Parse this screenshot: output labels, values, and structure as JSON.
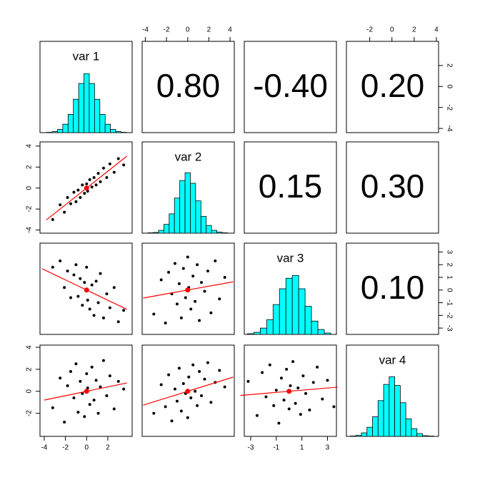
{
  "chart_data": {
    "type": "pairs",
    "variables": [
      {
        "label": "var 1",
        "lim": [
          -4.4,
          4.3
        ],
        "xticks": [
          -4,
          -2,
          0,
          2
        ],
        "yticks": [
          -4,
          -2,
          0,
          2
        ],
        "bins": [
          -3.75,
          -3.25,
          -2.75,
          -2.25,
          -1.75,
          -1.25,
          -0.75,
          -0.25,
          0.25,
          0.75,
          1.25,
          1.75,
          2.25,
          2.75,
          3.25,
          3.75
        ],
        "counts": [
          1,
          3,
          9,
          24,
          52,
          95,
          140,
          168,
          140,
          95,
          52,
          24,
          9,
          3,
          1
        ]
      },
      {
        "label": "var 2",
        "lim": [
          -4.3,
          4.4
        ],
        "xticks": [
          -4,
          -2,
          0,
          2,
          4
        ],
        "yticks": [
          -4,
          -2,
          0,
          2,
          4
        ],
        "bins": [
          -3.75,
          -3.25,
          -2.75,
          -2.25,
          -1.75,
          -1.25,
          -0.75,
          -0.25,
          0.25,
          0.75,
          1.25,
          1.75,
          2.25,
          2.75,
          3.25,
          3.75
        ],
        "counts": [
          1,
          2,
          8,
          25,
          55,
          100,
          150,
          172,
          142,
          92,
          48,
          22,
          8,
          3,
          1
        ]
      },
      {
        "label": "var 3",
        "lim": [
          -3.5,
          3.7
        ],
        "xticks": [
          -3,
          -1,
          1,
          3
        ],
        "yticks": [
          -3,
          -2,
          -1,
          0,
          1,
          2,
          3
        ],
        "bins": [
          -3.25,
          -2.75,
          -2.25,
          -1.75,
          -1.25,
          -0.75,
          -0.25,
          0.25,
          0.75,
          1.25,
          1.75,
          2.25,
          2.75,
          3.25
        ],
        "counts": [
          2,
          6,
          18,
          42,
          85,
          130,
          160,
          168,
          130,
          80,
          38,
          14,
          4
        ]
      },
      {
        "label": "var 4",
        "lim": [
          -4.1,
          4.2
        ],
        "xticks": [
          -2,
          0,
          2,
          4
        ],
        "yticks": [
          -2,
          0,
          2,
          4
        ],
        "bins": [
          -3.75,
          -3.25,
          -2.75,
          -2.25,
          -1.75,
          -1.25,
          -0.75,
          -0.25,
          0.25,
          0.75,
          1.25,
          1.75,
          2.25,
          2.75,
          3.25,
          3.75
        ],
        "counts": [
          1,
          3,
          10,
          26,
          56,
          102,
          148,
          170,
          145,
          96,
          50,
          22,
          8,
          2,
          1
        ]
      }
    ],
    "hist_ylim": [
      0,
      260
    ],
    "correlations": {
      "values": [
        0.8,
        -0.4,
        0.2,
        0.15,
        0.3,
        0.1
      ],
      "value_labels": [
        "0.80",
        "-0.40",
        "0.20",
        "0.15",
        "0.30",
        "0.10"
      ]
    },
    "scatter": [
      {
        "x": [
          -3.2,
          -2.5,
          -2.1,
          -1.8,
          -1.5,
          -1.2,
          -1,
          -0.8,
          -0.6,
          -0.4,
          -0.2,
          0,
          0.1,
          0.3,
          0.5,
          0.7,
          0.9,
          1.1,
          1.3,
          1.6,
          1.9,
          2.2,
          2.6,
          3.0,
          3.5
        ],
        "y": [
          -3.0,
          -1.6,
          -2.3,
          -0.9,
          -1.5,
          -0.4,
          -1.3,
          -0.2,
          -0.9,
          0.3,
          -0.5,
          0.4,
          -0.3,
          0.8,
          0.1,
          1.0,
          0.3,
          1.4,
          0.6,
          1.9,
          1.0,
          2.3,
          1.5,
          2.8,
          2.2
        ],
        "fit": {
          "x": [
            -3.8,
            3.8
          ],
          "y": [
            -3.04,
            3.04
          ]
        },
        "mean_x": 0,
        "mean_y": 0
      },
      {
        "x": [
          -3.2,
          -2.5,
          -2.1,
          -1.8,
          -1.5,
          -1.2,
          -1,
          -0.8,
          -0.6,
          -0.4,
          -0.2,
          0,
          0.1,
          0.3,
          0.5,
          0.7,
          0.9,
          1.1,
          1.3,
          1.6,
          1.9,
          2.2,
          2.6,
          3.0,
          3.5
        ],
        "y": [
          1.8,
          2.3,
          0.2,
          1.5,
          -0.6,
          1.2,
          2.0,
          -0.5,
          0.9,
          -1.2,
          0.6,
          1.8,
          -0.8,
          -1.5,
          0.4,
          -2.0,
          0.7,
          -1.0,
          1.3,
          -2.2,
          -0.3,
          -1.4,
          0.2,
          -2.5,
          -1.6
        ],
        "fit": {
          "x": [
            -4.2,
            3.8
          ],
          "y": [
            1.68,
            -1.52
          ]
        },
        "mean_x": 0,
        "mean_y": 0
      },
      {
        "x": [
          -3.2,
          -2.5,
          -2.1,
          -1.8,
          -1.5,
          -1.2,
          -1,
          -0.8,
          -0.6,
          -0.4,
          -0.2,
          0,
          0.1,
          0.3,
          0.5,
          0.7,
          0.9,
          1.1,
          1.3,
          1.6,
          1.9,
          2.2,
          2.6,
          3.0,
          3.5
        ],
        "y": [
          -1.9,
          0.8,
          -2.6,
          1.4,
          -0.3,
          2.1,
          -1.1,
          0.5,
          -2.2,
          1.7,
          -0.6,
          2.6,
          0.2,
          -1.5,
          1.1,
          -0.9,
          2.0,
          -2.4,
          0.6,
          -0.1,
          1.5,
          -1.8,
          2.3,
          -0.7,
          1.0
        ],
        "fit": {
          "x": [
            -4.2,
            4.3
          ],
          "y": [
            -0.63,
            0.65
          ]
        },
        "mean_x": 0,
        "mean_y": 0
      },
      {
        "x": [
          -3.2,
          -2.5,
          -2.1,
          -1.8,
          -1.5,
          -1.2,
          -1,
          -0.8,
          -0.6,
          -0.4,
          -0.2,
          0,
          0.1,
          0.3,
          0.5,
          0.7,
          0.9,
          1.1,
          1.3,
          1.6,
          1.9,
          2.2,
          2.6,
          3.0,
          3.5
        ],
        "y": [
          -1.5,
          1.2,
          -2.8,
          0.5,
          1.8,
          -0.6,
          2.5,
          -1.9,
          0.9,
          -0.2,
          -2.3,
          1.6,
          0.3,
          -1.2,
          2.2,
          -0.8,
          1.0,
          -2.0,
          0.4,
          2.8,
          -0.4,
          1.4,
          -1.6,
          0.9,
          0.2
        ],
        "fit": {
          "x": [
            -4.0,
            3.8
          ],
          "y": [
            -0.8,
            0.76
          ]
        },
        "mean_x": 0,
        "mean_y": 0
      },
      {
        "x": [
          -3.2,
          -2.5,
          -2.1,
          -1.8,
          -1.5,
          -1.2,
          -1,
          -0.8,
          -0.6,
          -0.4,
          -0.2,
          0,
          0.1,
          0.3,
          0.5,
          0.7,
          0.9,
          1.1,
          1.3,
          1.6,
          1.9,
          2.2,
          2.6,
          3.0,
          3.5
        ],
        "y": [
          -2.0,
          0.6,
          -1.4,
          1.5,
          -2.7,
          0.2,
          -0.9,
          2.1,
          -1.8,
          0.7,
          -0.2,
          -2.4,
          1.3,
          -0.6,
          2.4,
          0.0,
          -1.3,
          1.8,
          -0.4,
          1.1,
          2.6,
          -1.0,
          0.8,
          1.9,
          0.4
        ],
        "fit": {
          "x": [
            -4.2,
            4.3
          ],
          "y": [
            -1.26,
            1.29
          ]
        },
        "mean_x": 0,
        "mean_y": 0
      },
      {
        "x": [
          -3.2,
          -2.5,
          -2.1,
          -1.8,
          -1.5,
          -1.2,
          -1,
          -0.8,
          -0.6,
          -0.4,
          -0.2,
          0,
          0.1,
          0.3,
          0.5,
          0.7,
          0.9,
          1.1,
          1.3,
          1.6,
          1.9,
          2.2,
          2.6,
          3.0,
          3.5
        ],
        "y": [
          0.9,
          -2.2,
          1.7,
          -0.5,
          2.4,
          -1.3,
          0.1,
          -2.9,
          1.2,
          -0.8,
          2.0,
          -1.6,
          0.5,
          2.7,
          -1.1,
          0.3,
          -2.1,
          1.4,
          -0.2,
          -1.7,
          0.8,
          2.2,
          -0.7,
          1.0,
          -1.4
        ],
        "fit": {
          "x": [
            -3.8,
            3.8
          ],
          "y": [
            -0.38,
            0.38
          ]
        },
        "mean_x": 0,
        "mean_y": 0
      }
    ],
    "point_color": "#000000",
    "fit_color": "#ff0000",
    "hist_color": "#00ffff"
  }
}
